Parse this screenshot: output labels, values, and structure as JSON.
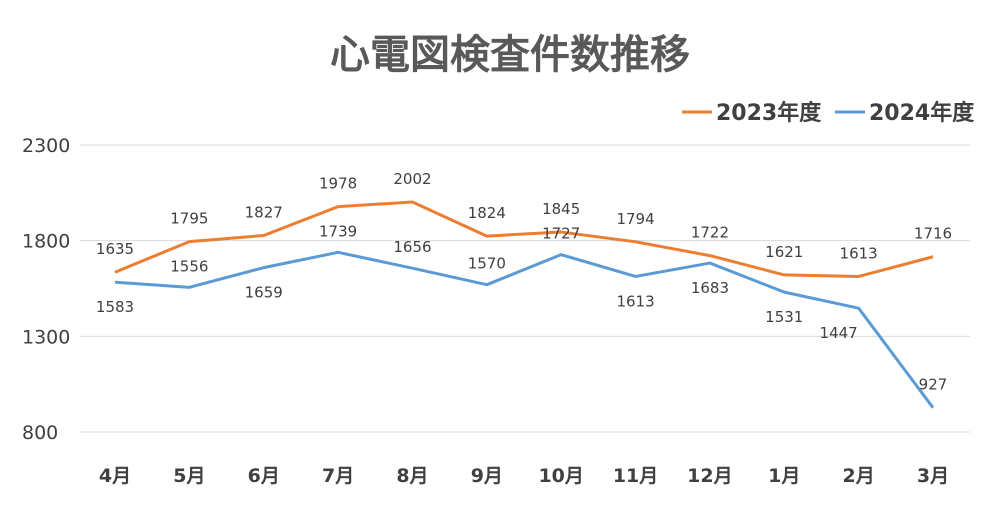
{
  "chart_data": {
    "type": "line",
    "title": "心電図検査件数推移",
    "categories": [
      "4月",
      "5月",
      "6月",
      "7月",
      "8月",
      "9月",
      "10月",
      "11月",
      "12月",
      "1月",
      "2月",
      "3月"
    ],
    "series": [
      {
        "name": "2023年度",
        "color": "#ed7d31",
        "values": [
          1635,
          1795,
          1827,
          1978,
          2002,
          1824,
          1845,
          1794,
          1722,
          1621,
          1613,
          1716
        ]
      },
      {
        "name": "2024年度",
        "color": "#5b9bd5",
        "values": [
          1583,
          1556,
          1659,
          1739,
          1656,
          1570,
          1727,
          1613,
          1683,
          1531,
          1447,
          927
        ]
      }
    ],
    "yticks": [
      800,
      1300,
      1800,
      2300
    ],
    "ylim": [
      800,
      2300
    ],
    "grid": true,
    "legend": "top-right"
  }
}
